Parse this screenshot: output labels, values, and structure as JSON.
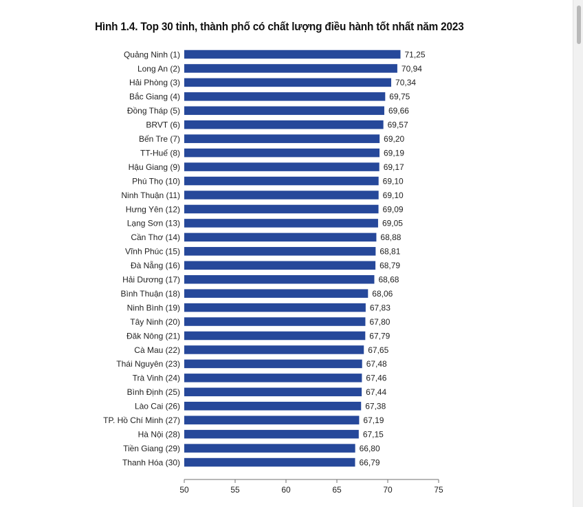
{
  "title": "Hình 1.4. Top 30 tỉnh, thành phố có chất lượng điều hành tốt nhất năm 2023",
  "colors": {
    "bar": "#26489a",
    "axis": "#6f6f6f",
    "text": "#222222"
  },
  "chart_data": {
    "type": "bar",
    "orientation": "horizontal",
    "title": "Hình 1.4. Top 30 tỉnh, thành phố có chất lượng điều hành tốt nhất năm 2023",
    "xlabel": "",
    "ylabel": "",
    "xlim": [
      50,
      75
    ],
    "xticks": [
      "50",
      "55",
      "60",
      "65",
      "70",
      "75"
    ],
    "grid": false,
    "legend": "none",
    "categories": [
      "Quảng Ninh (1)",
      "Long An (2)",
      "Hải Phòng (3)",
      "Bắc Giang (4)",
      "Đồng Tháp (5)",
      "BRVT (6)",
      "Bến Tre (7)",
      "TT-Huế (8)",
      "Hậu Giang (9)",
      "Phú Thọ (10)",
      "Ninh Thuận (11)",
      "Hưng Yên (12)",
      "Lạng Sơn (13)",
      "Cần Thơ (14)",
      "Vĩnh Phúc (15)",
      "Đà Nẵng (16)",
      "Hải Dương (17)",
      "Bình Thuận (18)",
      "Ninh Bình (19)",
      "Tây Ninh (20)",
      "Đăk Nông (21)",
      "Cà Mau (22)",
      "Thái Nguyên (23)",
      "Trà Vinh (24)",
      "Bình Định (25)",
      "Lào Cai (26)",
      "TP. Hồ Chí Minh (27)",
      "Hà Nội (28)",
      "Tiền Giang (29)",
      "Thanh Hóa (30)"
    ],
    "values": [
      71.25,
      70.94,
      70.34,
      69.75,
      69.66,
      69.57,
      69.2,
      69.19,
      69.17,
      69.1,
      69.1,
      69.09,
      69.05,
      68.88,
      68.81,
      68.79,
      68.68,
      68.06,
      67.83,
      67.8,
      67.79,
      67.65,
      67.48,
      67.46,
      67.44,
      67.38,
      67.19,
      67.15,
      66.8,
      66.79
    ],
    "value_labels": [
      "71,25",
      "70,94",
      "70,34",
      "69,75",
      "69,66",
      "69,57",
      "69,20",
      "69,19",
      "69,17",
      "69,10",
      "69,10",
      "69,09",
      "69,05",
      "68,88",
      "68,81",
      "68,79",
      "68,68",
      "68,06",
      "67,83",
      "67,80",
      "67,79",
      "67,65",
      "67,48",
      "67,46",
      "67,44",
      "67,38",
      "67,19",
      "67,15",
      "66,80",
      "66,79"
    ]
  }
}
